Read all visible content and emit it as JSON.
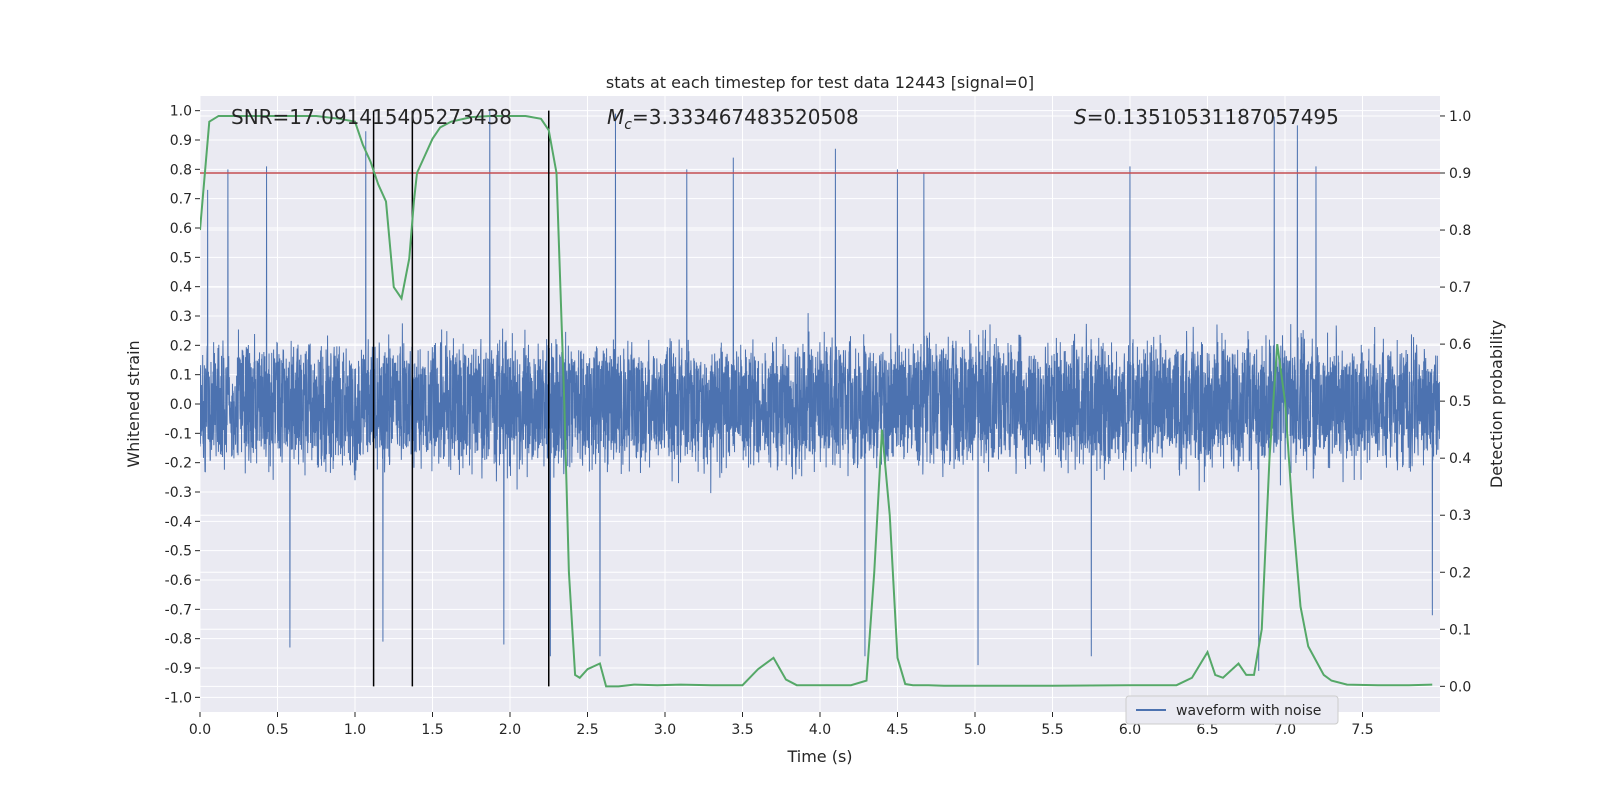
{
  "chart_data": {
    "type": "line",
    "title": "stats at each timestep for test data 12443 [signal=0]",
    "xlabel": "Time (s)",
    "ylabel": "Whitened strain",
    "y2label": "Detection probability",
    "xlim": [
      0,
      8.0
    ],
    "ylim": [
      -1.05,
      1.05
    ],
    "y2lim": [
      -0.045,
      1.035
    ],
    "xticks": [
      "0.0",
      "0.5",
      "1.0",
      "1.5",
      "2.0",
      "2.5",
      "3.0",
      "3.5",
      "4.0",
      "4.5",
      "5.0",
      "5.5",
      "6.0",
      "6.5",
      "7.0",
      "7.5"
    ],
    "xtick_values": [
      0,
      0.5,
      1.0,
      1.5,
      2.0,
      2.5,
      3.0,
      3.5,
      4.0,
      4.5,
      5.0,
      5.5,
      6.0,
      6.5,
      7.0,
      7.5
    ],
    "yticks": [
      "1.0",
      "0.9",
      "0.8",
      "0.7",
      "0.6",
      "0.5",
      "0.4",
      "0.3",
      "0.2",
      "0.1",
      "0.0",
      "-0.1",
      "-0.2",
      "-0.3",
      "-0.4",
      "-0.5",
      "-0.6",
      "-0.7",
      "-0.8",
      "-0.9",
      "-1.0"
    ],
    "ytick_values": [
      1.0,
      0.9,
      0.8,
      0.7,
      0.6,
      0.5,
      0.4,
      0.3,
      0.2,
      0.1,
      0.0,
      -0.1,
      -0.2,
      -0.3,
      -0.4,
      -0.5,
      -0.6,
      -0.7,
      -0.8,
      -0.9,
      -1.0
    ],
    "y2ticks": [
      "1.0",
      "0.9",
      "0.8",
      "0.7",
      "0.6",
      "0.5",
      "0.4",
      "0.3",
      "0.2",
      "0.1",
      "0.0"
    ],
    "y2tick_values": [
      1.0,
      0.9,
      0.8,
      0.7,
      0.6,
      0.5,
      0.4,
      0.3,
      0.2,
      0.1,
      0.0
    ],
    "grid": true,
    "legend_position": "bottom-right",
    "annotations": {
      "snr": "SNR=17.091415405273438",
      "mc_symbol": "M",
      "mc_sub": "c",
      "mc_value": "=3.333467483520508",
      "s_symbol": "S",
      "s_value": "=0.13510531187057495"
    },
    "threshold": {
      "axis": "y2",
      "value": 0.9,
      "color": "#c44e52"
    },
    "vlines": [
      1.12,
      1.37,
      2.25
    ],
    "series": [
      {
        "name": "waveform with noise",
        "axis": "y",
        "color": "#4c72b0",
        "kind": "noise",
        "x_range": [
          0,
          8.0
        ],
        "samples": 6000,
        "spikes": [
          {
            "x": 0.05,
            "y": 0.73
          },
          {
            "x": 0.18,
            "y": 0.8
          },
          {
            "x": 0.43,
            "y": 0.81
          },
          {
            "x": 1.07,
            "y": 0.93
          },
          {
            "x": 1.87,
            "y": 1.0
          },
          {
            "x": 2.68,
            "y": 0.99
          },
          {
            "x": 3.14,
            "y": 0.8
          },
          {
            "x": 3.44,
            "y": 0.84
          },
          {
            "x": 4.1,
            "y": 0.87
          },
          {
            "x": 4.5,
            "y": 0.8
          },
          {
            "x": 4.67,
            "y": 0.79
          },
          {
            "x": 6.0,
            "y": 0.81
          },
          {
            "x": 6.93,
            "y": 0.98
          },
          {
            "x": 7.08,
            "y": 0.95
          },
          {
            "x": 7.2,
            "y": 0.81
          },
          {
            "x": 0.58,
            "y": -0.83
          },
          {
            "x": 1.18,
            "y": -0.81
          },
          {
            "x": 1.96,
            "y": -0.82
          },
          {
            "x": 2.26,
            "y": -0.86
          },
          {
            "x": 2.58,
            "y": -0.86
          },
          {
            "x": 4.29,
            "y": -0.86
          },
          {
            "x": 5.02,
            "y": -0.89
          },
          {
            "x": 5.75,
            "y": -0.86
          },
          {
            "x": 6.83,
            "y": -0.91
          },
          {
            "x": 7.95,
            "y": -0.72
          }
        ]
      },
      {
        "name": "Detection probability",
        "axis": "y2",
        "color": "#55a868",
        "x": [
          0.0,
          0.06,
          0.12,
          0.25,
          0.5,
          0.75,
          0.9,
          1.0,
          1.05,
          1.1,
          1.15,
          1.2,
          1.25,
          1.3,
          1.35,
          1.38,
          1.4,
          1.45,
          1.5,
          1.55,
          1.62,
          1.75,
          1.87,
          2.0,
          2.1,
          2.2,
          2.25,
          2.3,
          2.35,
          2.38,
          2.42,
          2.45,
          2.5,
          2.58,
          2.62,
          2.7,
          2.8,
          2.95,
          3.1,
          3.3,
          3.5,
          3.6,
          3.7,
          3.78,
          3.85,
          4.0,
          4.2,
          4.3,
          4.35,
          4.4,
          4.45,
          4.5,
          4.55,
          4.6,
          4.7,
          4.8,
          5.0,
          5.5,
          6.0,
          6.3,
          6.4,
          6.5,
          6.55,
          6.6,
          6.7,
          6.75,
          6.8,
          6.85,
          6.9,
          6.95,
          7.0,
          7.05,
          7.1,
          7.15,
          7.25,
          7.3,
          7.4,
          7.6,
          7.8,
          7.95
        ],
        "y": [
          0.8,
          0.99,
          1.0,
          1.0,
          1.0,
          1.0,
          0.995,
          0.99,
          0.95,
          0.92,
          0.88,
          0.85,
          0.7,
          0.68,
          0.75,
          0.85,
          0.9,
          0.93,
          0.96,
          0.98,
          0.99,
          0.998,
          1.0,
          1.0,
          1.0,
          0.995,
          0.975,
          0.9,
          0.5,
          0.2,
          0.02,
          0.015,
          0.03,
          0.04,
          0.0,
          0.0,
          0.003,
          0.002,
          0.003,
          0.002,
          0.002,
          0.03,
          0.05,
          0.012,
          0.002,
          0.002,
          0.002,
          0.01,
          0.2,
          0.45,
          0.3,
          0.05,
          0.004,
          0.002,
          0.002,
          0.001,
          0.001,
          0.001,
          0.002,
          0.002,
          0.015,
          0.06,
          0.02,
          0.015,
          0.04,
          0.02,
          0.02,
          0.1,
          0.4,
          0.6,
          0.5,
          0.3,
          0.14,
          0.07,
          0.02,
          0.01,
          0.003,
          0.002,
          0.002,
          0.003
        ]
      }
    ]
  }
}
